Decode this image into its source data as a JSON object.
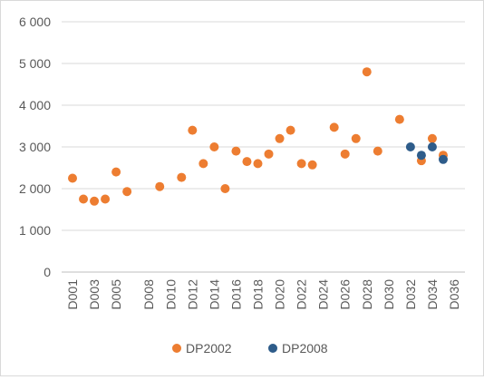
{
  "chart_data": {
    "type": "scatter",
    "title": "",
    "xlabel": "",
    "ylabel": "",
    "ylim": [
      0,
      6000
    ],
    "y_ticks": [
      0,
      1000,
      2000,
      3000,
      4000,
      5000,
      6000
    ],
    "y_tick_labels": [
      "0",
      "1 000",
      "2 000",
      "3 000",
      "4 000",
      "5 000",
      "6 000"
    ],
    "grid": "horizontal",
    "legend_position": "bottom",
    "categories": [
      "D001",
      "D002",
      "D003",
      "D004",
      "D005",
      "D006",
      "D007",
      "D008",
      "D009",
      "D010",
      "D011",
      "D012",
      "D013",
      "D014",
      "D015",
      "D016",
      "D017",
      "D018",
      "D019",
      "D020",
      "D021",
      "D022",
      "D023",
      "D024",
      "D025",
      "D026",
      "D027",
      "D028",
      "D029",
      "D030",
      "D031",
      "D032",
      "D033",
      "D034",
      "D035",
      "D036"
    ],
    "x_tick_labels": [
      "D001",
      "D003",
      "D005",
      "D008",
      "D010",
      "D012",
      "D014",
      "D016",
      "D018",
      "D020",
      "D022",
      "D024",
      "D026",
      "D028",
      "D030",
      "D032",
      "D034",
      "D036"
    ],
    "series": [
      {
        "name": "DP2002",
        "color": "#ED7D31",
        "points": [
          {
            "x": "D001",
            "y": 2250
          },
          {
            "x": "D002",
            "y": 1750
          },
          {
            "x": "D003",
            "y": 1700
          },
          {
            "x": "D004",
            "y": 1750
          },
          {
            "x": "D005",
            "y": 2400
          },
          {
            "x": "D006",
            "y": 1930
          },
          {
            "x": "D009",
            "y": 2050
          },
          {
            "x": "D011",
            "y": 2270
          },
          {
            "x": "D012",
            "y": 3400
          },
          {
            "x": "D013",
            "y": 2600
          },
          {
            "x": "D014",
            "y": 3000
          },
          {
            "x": "D015",
            "y": 2000
          },
          {
            "x": "D016",
            "y": 2900
          },
          {
            "x": "D017",
            "y": 2650
          },
          {
            "x": "D018",
            "y": 2600
          },
          {
            "x": "D019",
            "y": 2830
          },
          {
            "x": "D020",
            "y": 3200
          },
          {
            "x": "D021",
            "y": 3400
          },
          {
            "x": "D022",
            "y": 2600
          },
          {
            "x": "D023",
            "y": 2570
          },
          {
            "x": "D025",
            "y": 3470
          },
          {
            "x": "D026",
            "y": 2830
          },
          {
            "x": "D027",
            "y": 3200
          },
          {
            "x": "D028",
            "y": 4800
          },
          {
            "x": "D029",
            "y": 2900
          },
          {
            "x": "D031",
            "y": 3660
          },
          {
            "x": "D033",
            "y": 2670
          },
          {
            "x": "D034",
            "y": 3200
          },
          {
            "x": "D035",
            "y": 2800
          }
        ]
      },
      {
        "name": "DP2008",
        "color": "#2E5C8A",
        "points": [
          {
            "x": "D032",
            "y": 3000
          },
          {
            "x": "D033",
            "y": 2800
          },
          {
            "x": "D034",
            "y": 3000
          },
          {
            "x": "D035",
            "y": 2700
          }
        ]
      }
    ]
  }
}
